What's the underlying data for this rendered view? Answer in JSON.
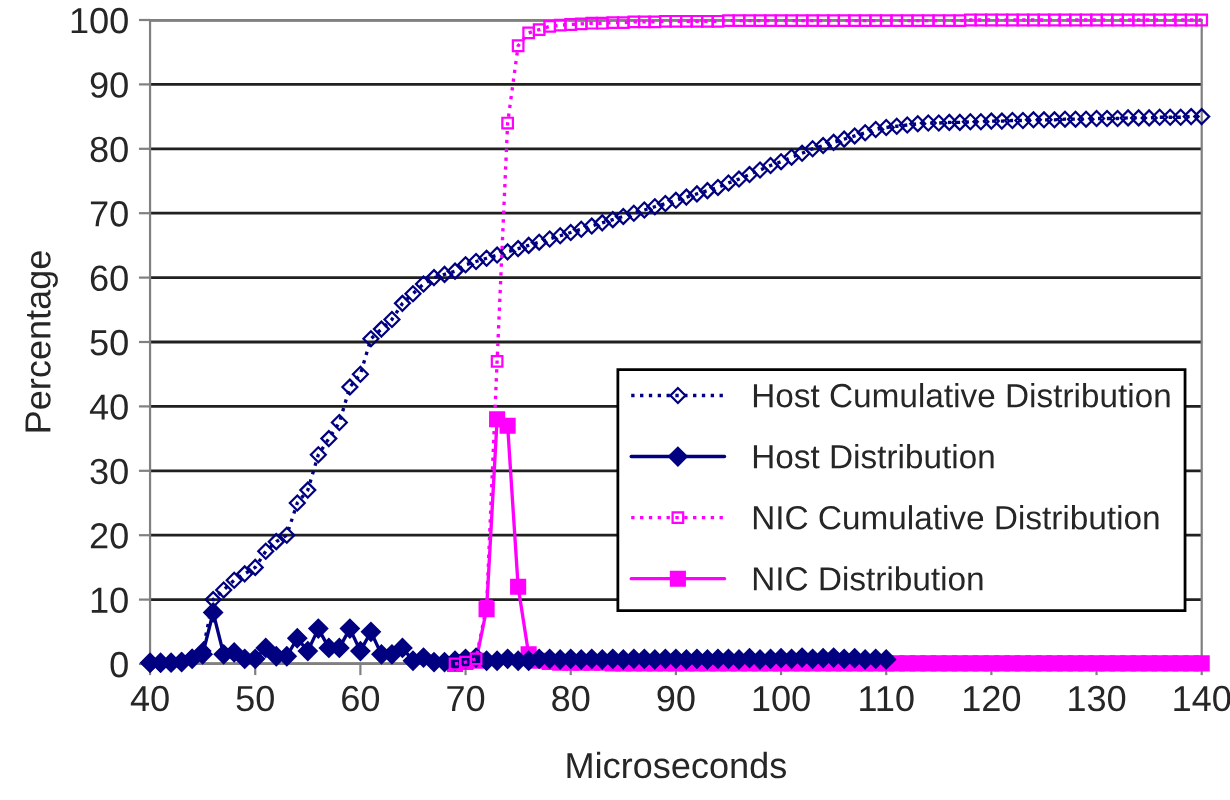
{
  "chart_data": {
    "type": "line",
    "xlabel": "Microseconds",
    "ylabel": "Percentage",
    "x": [
      40,
      41,
      42,
      43,
      44,
      45,
      46,
      47,
      48,
      49,
      50,
      51,
      52,
      53,
      54,
      55,
      56,
      57,
      58,
      59,
      60,
      61,
      62,
      63,
      64,
      65,
      66,
      67,
      68,
      69,
      70,
      71,
      72,
      73,
      74,
      75,
      76,
      77,
      78,
      79,
      80,
      81,
      82,
      83,
      84,
      85,
      86,
      87,
      88,
      89,
      90,
      91,
      92,
      93,
      94,
      95,
      96,
      97,
      98,
      99,
      100,
      101,
      102,
      103,
      104,
      105,
      106,
      107,
      108,
      109,
      110,
      111,
      112,
      113,
      114,
      115,
      116,
      117,
      118,
      119,
      120,
      121,
      122,
      123,
      124,
      125,
      126,
      127,
      128,
      129,
      130,
      131,
      132,
      133,
      134,
      135,
      136,
      137,
      138,
      139,
      140
    ],
    "xlim": [
      40,
      140
    ],
    "xticks": [
      40,
      50,
      60,
      70,
      80,
      90,
      100,
      110,
      120,
      130,
      140
    ],
    "ylim": [
      0,
      100
    ],
    "yticks": [
      0,
      10,
      20,
      30,
      40,
      50,
      60,
      70,
      80,
      90,
      100
    ],
    "grid": "y",
    "legend": "right",
    "series": [
      {
        "name": "Host Cumulative Distribution",
        "color": "#000080",
        "marker": "diamond",
        "line_style": "dotted",
        "values": [
          0,
          0,
          0.2,
          0.5,
          1,
          2,
          10,
          11.5,
          13,
          14,
          15,
          17.5,
          19,
          20,
          25,
          27,
          32.5,
          35,
          37.5,
          43,
          45,
          50.5,
          52,
          53.5,
          56,
          57.5,
          59,
          60,
          60.5,
          61,
          62,
          62.5,
          63,
          63.5,
          64,
          64.5,
          65,
          65.5,
          66,
          66.5,
          67,
          67.5,
          68,
          68.5,
          69,
          69.5,
          70,
          70.5,
          71,
          71.5,
          72,
          72.5,
          73,
          73.5,
          74,
          74.7,
          75.3,
          76,
          76.7,
          77.4,
          78,
          78.7,
          79.3,
          80,
          80.5,
          81,
          81.5,
          82,
          82.5,
          83,
          83.3,
          83.5,
          83.7,
          83.9,
          84,
          84,
          84.1,
          84.1,
          84.2,
          84.2,
          84.3,
          84.3,
          84.4,
          84.4,
          84.5,
          84.5,
          84.5,
          84.6,
          84.6,
          84.6,
          84.7,
          84.7,
          84.7,
          84.8,
          84.8,
          84.8,
          84.9,
          84.9,
          84.9,
          85,
          85
        ]
      },
      {
        "name": "Host Distribution",
        "color": "#000080",
        "marker": "diamond",
        "line_style": "solid",
        "values": [
          0.2,
          0.2,
          0.2,
          0.3,
          0.8,
          1.5,
          8,
          1.5,
          1.8,
          0.8,
          0.8,
          2.5,
          1.2,
          1.2,
          4,
          2,
          5.5,
          2.5,
          2.5,
          5.5,
          2,
          5,
          1.5,
          1.5,
          2.5,
          0.5,
          1,
          0.3,
          0.3,
          0.5,
          0.8,
          1,
          0.5,
          0.5,
          0.8,
          0.5,
          0.5,
          0.8,
          0.8,
          0.7,
          0.8,
          0.7,
          0.8,
          0.7,
          0.8,
          0.7,
          0.8,
          0.8,
          0.7,
          0.8,
          0.8,
          0.7,
          0.8,
          0.7,
          0.8,
          0.8,
          0.7,
          0.9,
          0.7,
          0.8,
          0.9,
          0.8,
          1,
          0.8,
          0.9,
          1,
          0.8,
          0.9,
          0.7,
          0.8,
          0.7,
          null,
          null,
          null,
          null,
          null,
          null,
          null,
          null,
          null,
          null,
          null,
          null,
          null,
          null,
          null,
          null,
          null,
          null,
          null,
          null,
          null,
          null,
          null,
          null,
          null,
          null,
          null,
          null,
          null,
          null
        ]
      },
      {
        "name": "NIC Cumulative Distribution",
        "color": "#ff00ff",
        "marker": "square",
        "line_style": "dotted",
        "values": [
          null,
          null,
          null,
          null,
          null,
          null,
          null,
          null,
          null,
          null,
          null,
          null,
          null,
          null,
          null,
          null,
          null,
          null,
          null,
          null,
          null,
          null,
          null,
          null,
          null,
          null,
          null,
          null,
          null,
          0,
          0.3,
          0.8,
          9,
          47,
          84,
          96,
          98,
          98.5,
          99,
          99.2,
          99.3,
          99.4,
          99.5,
          99.5,
          99.6,
          99.6,
          99.7,
          99.7,
          99.7,
          99.8,
          99.8,
          99.8,
          99.8,
          99.8,
          99.8,
          99.9,
          99.9,
          99.9,
          99.9,
          99.9,
          99.9,
          99.9,
          99.9,
          99.9,
          99.9,
          99.9,
          99.9,
          99.9,
          99.9,
          99.9,
          99.9,
          99.9,
          99.9,
          99.9,
          99.9,
          99.9,
          99.9,
          99.9,
          100,
          100,
          100,
          100,
          100,
          100,
          100,
          100,
          100,
          100,
          100,
          100,
          100,
          100,
          100,
          100,
          100,
          100,
          100,
          100,
          100,
          100,
          100
        ]
      },
      {
        "name": "NIC Distribution",
        "color": "#ff00ff",
        "marker": "square",
        "line_style": "solid",
        "values": [
          null,
          null,
          null,
          null,
          null,
          null,
          null,
          null,
          null,
          null,
          null,
          null,
          null,
          null,
          null,
          null,
          null,
          null,
          null,
          null,
          null,
          null,
          null,
          null,
          null,
          null,
          null,
          null,
          null,
          0,
          0.3,
          0.5,
          8.5,
          38,
          37,
          12,
          1.5,
          0.5,
          0.3,
          0.2,
          0.2,
          0.2,
          0.2,
          0.2,
          0.1,
          0.1,
          0.1,
          0.1,
          0.1,
          0.1,
          0.1,
          0.1,
          0.1,
          0.1,
          0.1,
          0.1,
          0.1,
          0.1,
          0.1,
          0.1,
          0.1,
          0.1,
          0.1,
          0.1,
          0.1,
          0.1,
          0.1,
          0.1,
          0.1,
          0.1,
          0.1,
          0.1,
          0.1,
          0.1,
          0.1,
          0.1,
          0.1,
          0.1,
          0.1,
          0.1,
          0.1,
          0.1,
          0.1,
          0.1,
          0.1,
          0.1,
          0.1,
          0.1,
          0.1,
          0.1,
          0.1,
          0.1,
          0.1,
          0.1,
          0.1,
          0.1,
          0.1,
          0.1,
          0.1,
          0.1,
          0.1
        ]
      }
    ]
  }
}
